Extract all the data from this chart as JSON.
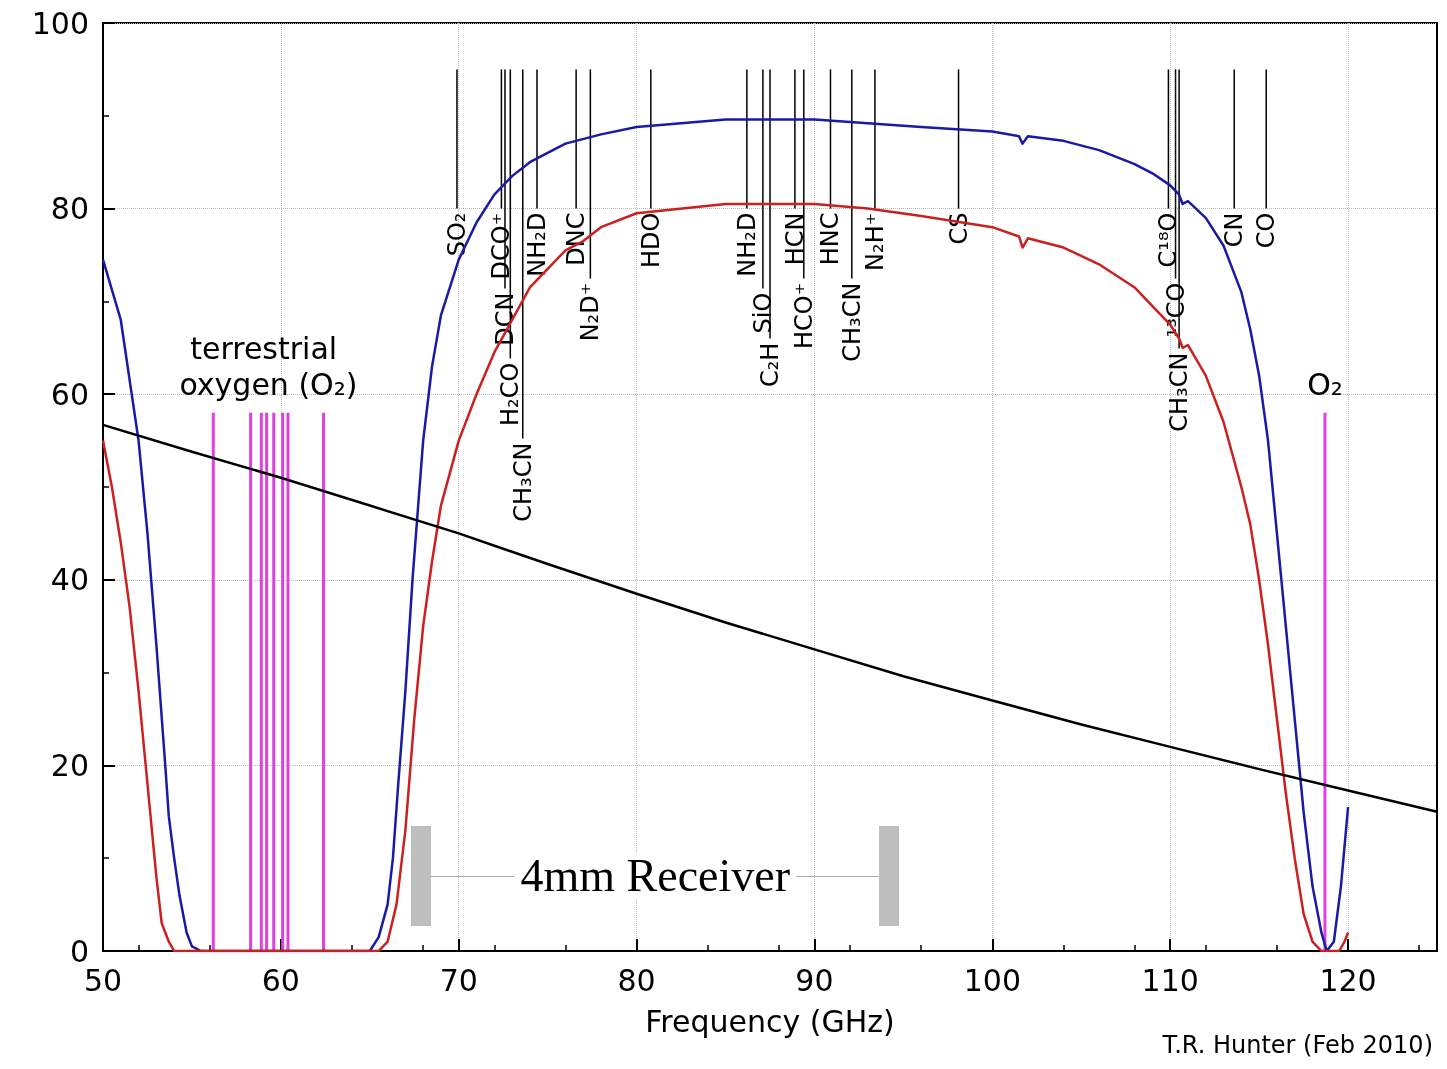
{
  "chart_data": {
    "type": "line",
    "xlabel": "Frequency (GHz)",
    "xlim": [
      50,
      125
    ],
    "ylim": [
      0,
      100
    ],
    "xticks": [
      50,
      60,
      70,
      80,
      90,
      100,
      110,
      120
    ],
    "yticks": [
      0,
      20,
      40,
      60,
      80,
      100
    ],
    "grid": true,
    "series": [
      {
        "color": "#1a1aa6",
        "x": [
          50,
          51,
          52,
          52.5,
          53,
          53.5,
          53.7,
          54,
          54.3,
          54.7,
          55,
          55.5,
          65,
          65.5,
          66,
          66.3,
          66.6,
          67,
          67.4,
          68,
          68.5,
          69,
          70,
          71,
          72,
          73,
          74,
          75,
          76,
          78,
          80,
          85,
          90,
          93,
          96,
          100,
          101.5,
          101.7,
          102,
          104,
          106,
          108,
          109,
          110,
          110.5,
          110.7,
          111,
          112,
          113,
          114,
          114.5,
          115,
          115.5,
          116,
          116.5,
          117,
          117.5,
          118,
          118.5,
          118.8,
          119.2,
          119.6,
          120
        ],
        "values": [
          74.5,
          68,
          55,
          45,
          33,
          20,
          14.5,
          10,
          6,
          2,
          0.5,
          0,
          0,
          1.5,
          5,
          10,
          18,
          28,
          40,
          55,
          63,
          68.5,
          74.5,
          78.5,
          81.5,
          83.5,
          85,
          86,
          87,
          88,
          88.8,
          89.6,
          89.6,
          89.2,
          88.8,
          88.3,
          87.8,
          87,
          87.8,
          87.3,
          86.3,
          84.8,
          83.8,
          82.5,
          81.5,
          80.5,
          80.8,
          79,
          76,
          71,
          67,
          62,
          55,
          45,
          35,
          25,
          15,
          7,
          2,
          0,
          1,
          7,
          15.5
        ]
      },
      {
        "color": "#cc2020",
        "x": [
          50,
          50.5,
          51,
          51.5,
          52,
          52.5,
          53,
          53.3,
          53.7,
          54,
          65.5,
          66,
          66.5,
          67,
          67.5,
          68,
          68.5,
          69,
          70,
          71,
          72,
          73,
          74,
          75,
          76,
          77,
          78,
          80,
          85,
          90,
          93,
          96,
          100,
          101.5,
          101.7,
          102,
          104,
          106,
          108,
          109,
          110,
          110.5,
          110.7,
          111,
          112,
          113,
          114,
          114.5,
          115,
          115.5,
          116,
          116.5,
          117,
          117.5,
          118,
          118.5,
          119.5,
          119.8,
          120
        ],
        "values": [
          55,
          50,
          44,
          37,
          28,
          18,
          8,
          3,
          1,
          0,
          0,
          1,
          5,
          13,
          25,
          35,
          42,
          48,
          55,
          60,
          64.5,
          68,
          71.5,
          73.5,
          75.5,
          76.5,
          78,
          79.5,
          80.5,
          80.5,
          80,
          79.2,
          78,
          77,
          75.8,
          76.8,
          75.8,
          74,
          71.5,
          69.5,
          67.5,
          66,
          65,
          65.3,
          62,
          57,
          50,
          46,
          40,
          33,
          25,
          17,
          10,
          4,
          1,
          0,
          0,
          1,
          2
        ]
      },
      {
        "color": "#000000",
        "x": [
          50,
          55,
          60,
          65,
          70,
          75,
          80,
          85,
          90,
          95,
          100,
          105,
          110,
          115,
          120,
          125
        ],
        "values": [
          56.7,
          53.8,
          51,
          48,
          45,
          41.7,
          38.5,
          35.4,
          32.5,
          29.6,
          27,
          24.4,
          22,
          19.6,
          17.3,
          15
        ]
      },
      {
        "type": "bar",
        "name": "terrestrial oxygen (O₂)",
        "color": "#e040e0",
        "x": [
          56.2,
          58.3,
          58.9,
          59.2,
          59.6,
          60.1,
          60.4,
          62.4
        ],
        "values": [
          58,
          58,
          58,
          58,
          58,
          58,
          58,
          58
        ]
      },
      {
        "type": "bar",
        "name": "O₂",
        "color": "#e040e0",
        "x": [
          118.7
        ],
        "values": [
          58
        ]
      }
    ],
    "ref_lines": [
      {
        "axis": "x",
        "value": 69.9,
        "label": "SO₂"
      },
      {
        "axis": "x",
        "value": 72.4,
        "label": "DCO⁺"
      },
      {
        "axis": "x",
        "value": 72.6,
        "label": "DCN"
      },
      {
        "axis": "x",
        "value": 72.9,
        "label": "H₂CO"
      },
      {
        "axis": "x",
        "value": 73.6,
        "label": "CH₃CN"
      },
      {
        "axis": "x",
        "value": 74.4,
        "label": "NH₂D"
      },
      {
        "axis": "x",
        "value": 76.6,
        "label": "DNC"
      },
      {
        "axis": "x",
        "value": 77.4,
        "label": "N₂D⁺"
      },
      {
        "axis": "x",
        "value": 80.8,
        "label": "HDO"
      },
      {
        "axis": "x",
        "value": 86.2,
        "label": "NH₂D"
      },
      {
        "axis": "x",
        "value": 87.1,
        "label": "SiO"
      },
      {
        "axis": "x",
        "value": 87.5,
        "label": "C₂H"
      },
      {
        "axis": "x",
        "value": 88.9,
        "label": "HCN"
      },
      {
        "axis": "x",
        "value": 89.4,
        "label": "HCO⁺"
      },
      {
        "axis": "x",
        "value": 90.9,
        "label": "HNC"
      },
      {
        "axis": "x",
        "value": 92.1,
        "label": "CH₃CN"
      },
      {
        "axis": "x",
        "value": 93.4,
        "label": "N₂H⁺"
      },
      {
        "axis": "x",
        "value": 98.1,
        "label": "CS"
      },
      {
        "axis": "x",
        "value": 109.9,
        "label": "C¹⁸O"
      },
      {
        "axis": "x",
        "value": 110.3,
        "label": "¹³CO"
      },
      {
        "axis": "x",
        "value": 110.5,
        "label": "CH₃CN"
      },
      {
        "axis": "x",
        "value": 113.6,
        "label": "CN"
      },
      {
        "axis": "x",
        "value": 115.4,
        "label": "CO"
      }
    ],
    "annotations": [
      "4mm Receiver",
      "T.R. Hunter (Feb 2010)"
    ]
  }
}
